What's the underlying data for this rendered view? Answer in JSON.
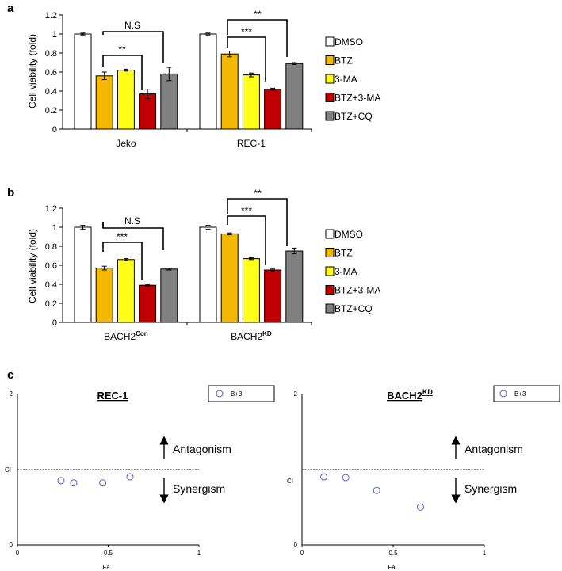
{
  "panels": {
    "a": "a",
    "b": "b",
    "c": "c"
  },
  "legend": [
    "DMSO",
    "BTZ",
    "3-MA",
    "BTZ+3-MA",
    "BTZ+CQ"
  ],
  "colors": {
    "DMSO": "#ffffff",
    "BTZ": "#f5b800",
    "3-MA": "#ffff1a",
    "BTZ+3-MA": "#c00000",
    "BTZ+CQ": "#808080",
    "marker": "#5b5bd6"
  },
  "chart_data": [
    {
      "type": "bar",
      "panel": "a",
      "ylabel": "Cell viability (fold)",
      "ylim": [
        0,
        1.2
      ],
      "yticks": [
        "0",
        "0.2",
        "0.4",
        "0.6",
        "0.8",
        "1",
        "1.2"
      ],
      "categories": [
        "Jeko",
        "REC-1"
      ],
      "series": [
        {
          "name": "DMSO",
          "values": [
            1.0,
            1.0
          ],
          "err": [
            0.01,
            0.01
          ]
        },
        {
          "name": "BTZ",
          "values": [
            0.56,
            0.79
          ],
          "err": [
            0.04,
            0.03
          ]
        },
        {
          "name": "3-MA",
          "values": [
            0.62,
            0.57
          ],
          "err": [
            0.01,
            0.02
          ]
        },
        {
          "name": "BTZ+3-MA",
          "values": [
            0.37,
            0.42
          ],
          "err": [
            0.05,
            0.01
          ]
        },
        {
          "name": "BTZ+CQ",
          "values": [
            0.58,
            0.69
          ],
          "err": [
            0.07,
            0.01
          ]
        }
      ],
      "annotations": [
        "N.S",
        "**",
        "**",
        "***"
      ]
    },
    {
      "type": "bar",
      "panel": "b",
      "ylabel": "Cell viability (fold)",
      "ylim": [
        0,
        1.2
      ],
      "yticks": [
        "0",
        "0.2",
        "0.4",
        "0.6",
        "0.8",
        "1",
        "1.2"
      ],
      "categories": [
        "BACH2",
        "BACH2"
      ],
      "category_superscripts": [
        "Con",
        "KD"
      ],
      "series": [
        {
          "name": "DMSO",
          "values": [
            1.0,
            1.0
          ],
          "err": [
            0.02,
            0.02
          ]
        },
        {
          "name": "BTZ",
          "values": [
            0.57,
            0.93
          ],
          "err": [
            0.02,
            0.01
          ]
        },
        {
          "name": "3-MA",
          "values": [
            0.66,
            0.67
          ],
          "err": [
            0.01,
            0.01
          ]
        },
        {
          "name": "BTZ+3-MA",
          "values": [
            0.39,
            0.55
          ],
          "err": [
            0.01,
            0.01
          ]
        },
        {
          "name": "BTZ+CQ",
          "values": [
            0.56,
            0.75
          ],
          "err": [
            0.01,
            0.03
          ]
        }
      ],
      "annotations": [
        "N.S",
        "***",
        "**",
        "***"
      ]
    },
    {
      "type": "scatter",
      "panel": "c",
      "title": "REC-1",
      "xlabel": "Fa",
      "ylabel": "CI",
      "xlim": [
        0,
        1
      ],
      "ylim": [
        0,
        2
      ],
      "xticks": [
        "0",
        "0.5",
        "1"
      ],
      "yticks": [
        "0",
        "2"
      ],
      "series": [
        {
          "name": "B+3",
          "x": [
            0.24,
            0.31,
            0.47,
            0.62
          ],
          "y": [
            0.85,
            0.82,
            0.82,
            0.9
          ]
        }
      ],
      "reference_line_y": 1,
      "annotations": [
        "Antagonism",
        "Synergism"
      ]
    },
    {
      "type": "scatter",
      "panel": "c",
      "title": "BACH2",
      "title_superscript": "KD",
      "xlabel": "Fa",
      "ylabel": "CI",
      "xlim": [
        0,
        1
      ],
      "ylim": [
        0,
        2
      ],
      "xticks": [
        "0",
        "0.5",
        "1"
      ],
      "yticks": [
        "0",
        "2"
      ],
      "series": [
        {
          "name": "B+3",
          "x": [
            0.12,
            0.24,
            0.41,
            0.65
          ],
          "y": [
            0.9,
            0.89,
            0.72,
            0.5
          ]
        }
      ],
      "reference_line_y": 1,
      "annotations": [
        "Antagonism",
        "Synergism"
      ]
    }
  ]
}
